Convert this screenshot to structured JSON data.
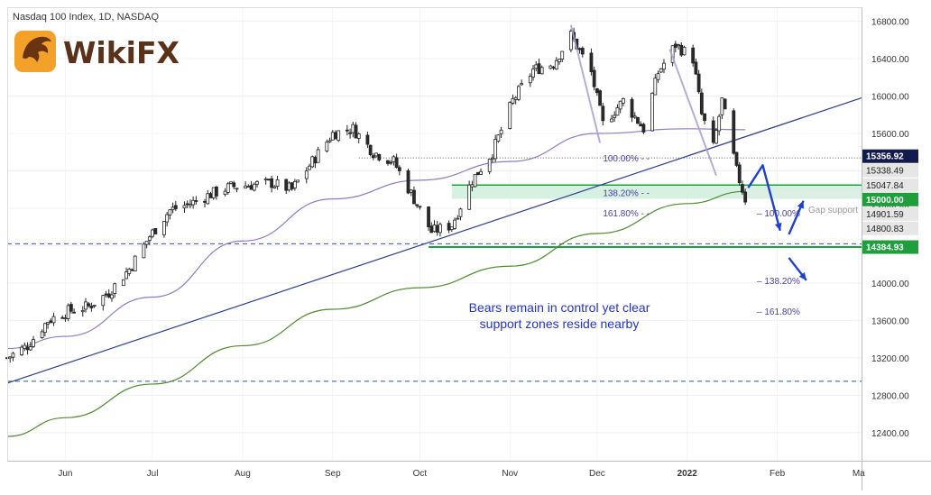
{
  "header": {
    "symbol_title": "Nasdaq 100 Index, 1D, NASDAQ"
  },
  "logo": {
    "text": "WikiFX"
  },
  "colors": {
    "up_candle": "#ffffff",
    "down_candle": "#2b2b2b",
    "ma_50": "#8e7cc3",
    "ma_200": "#4f8a2f",
    "trendline": "#2a3f8f",
    "support_green": "#1aa33b",
    "support_zone": "#cfeedd",
    "gap_zone": "#dcefe4",
    "arrow_blue": "#1f3fcf",
    "annotation_blue": "#2233cc",
    "fib_label": "#4a3f9f",
    "price_tag_dark": "#131b4d",
    "price_tag_light": "#e6e6e6",
    "price_tag_green": "#1f9e3c"
  },
  "chart_data": {
    "type": "line",
    "title": "Nasdaq 100 Index, 1D, NASDAQ",
    "xlabel": "",
    "ylabel": "",
    "ylim": [
      12100,
      16950
    ],
    "y_ticks": [
      12400,
      12800,
      13200,
      13600,
      14000,
      14400,
      14800,
      15200,
      15600,
      16000,
      16400,
      16800
    ],
    "y_tick_labels": [
      "12400.00",
      "12800.00",
      "13200.00",
      "13600.00",
      "14000.00",
      "14400.00",
      "14800.00",
      "15200.00",
      "15600.00",
      "16000.00",
      "16400.00",
      "16800.00"
    ],
    "x_labels": [
      "Jun",
      "Jul",
      "Aug",
      "Sep",
      "Oct",
      "Nov",
      "Dec",
      "2022",
      "Feb",
      "Ma"
    ],
    "x_label_dates": [
      "2021-06-01",
      "2021-07-01",
      "2021-08-01",
      "2021-09-01",
      "2021-10-01",
      "2021-11-01",
      "2021-12-01",
      "2022-01-01",
      "2022-02-01",
      "2022-03-01"
    ],
    "x_range": [
      "2021-05-12",
      "2022-03-02"
    ],
    "grid": true,
    "price_close_series": [
      {
        "date": "2021-05-12",
        "close": 13200
      },
      {
        "date": "2021-05-19",
        "close": 13330
      },
      {
        "date": "2021-05-26",
        "close": 13600
      },
      {
        "date": "2021-06-02",
        "close": 13700
      },
      {
        "date": "2021-06-09",
        "close": 13750
      },
      {
        "date": "2021-06-16",
        "close": 13900
      },
      {
        "date": "2021-06-23",
        "close": 14150
      },
      {
        "date": "2021-06-30",
        "close": 14500
      },
      {
        "date": "2021-07-07",
        "close": 14780
      },
      {
        "date": "2021-07-14",
        "close": 14850
      },
      {
        "date": "2021-07-21",
        "close": 14950
      },
      {
        "date": "2021-07-28",
        "close": 15030
      },
      {
        "date": "2021-08-04",
        "close": 15050
      },
      {
        "date": "2021-08-11",
        "close": 15070
      },
      {
        "date": "2021-08-18",
        "close": 15000
      },
      {
        "date": "2021-08-25",
        "close": 15300
      },
      {
        "date": "2021-09-01",
        "close": 15600
      },
      {
        "date": "2021-09-08",
        "close": 15650
      },
      {
        "date": "2021-09-15",
        "close": 15400
      },
      {
        "date": "2021-09-22",
        "close": 15300
      },
      {
        "date": "2021-09-29",
        "close": 14900
      },
      {
        "date": "2021-10-05",
        "close": 14550
      },
      {
        "date": "2021-10-12",
        "close": 14620
      },
      {
        "date": "2021-10-19",
        "close": 15100
      },
      {
        "date": "2021-10-26",
        "close": 15400
      },
      {
        "date": "2021-11-02",
        "close": 15950
      },
      {
        "date": "2021-11-09",
        "close": 16280
      },
      {
        "date": "2021-11-16",
        "close": 16350
      },
      {
        "date": "2021-11-22",
        "close": 16650
      },
      {
        "date": "2021-11-29",
        "close": 16250
      },
      {
        "date": "2021-12-03",
        "close": 15700
      },
      {
        "date": "2021-12-10",
        "close": 15950
      },
      {
        "date": "2021-12-17",
        "close": 15650
      },
      {
        "date": "2021-12-22",
        "close": 16250
      },
      {
        "date": "2021-12-28",
        "close": 16550
      },
      {
        "date": "2022-01-03",
        "close": 16400
      },
      {
        "date": "2022-01-06",
        "close": 15800
      },
      {
        "date": "2022-01-10",
        "close": 15450
      },
      {
        "date": "2022-01-13",
        "close": 15950
      },
      {
        "date": "2022-01-18",
        "close": 15200
      },
      {
        "date": "2022-01-21",
        "close": 14900
      }
    ],
    "series": [
      {
        "values": [
          {
            "date": "2021-05-12",
            "value": 13300
          },
          {
            "date": "2021-06-01",
            "value": 13430
          },
          {
            "date": "2021-07-01",
            "value": 13850
          },
          {
            "date": "2021-08-01",
            "value": 14450
          },
          {
            "date": "2021-09-01",
            "value": 14900
          },
          {
            "date": "2021-10-01",
            "value": 15100
          },
          {
            "date": "2021-11-01",
            "value": 15300
          },
          {
            "date": "2021-12-01",
            "value": 15600
          },
          {
            "date": "2022-01-01",
            "value": 15650
          },
          {
            "date": "2022-01-21",
            "value": 15640
          }
        ]
      },
      {
        "values": [
          {
            "date": "2021-05-12",
            "value": 12360
          },
          {
            "date": "2021-06-01",
            "value": 12560
          },
          {
            "date": "2021-07-01",
            "value": 12920
          },
          {
            "date": "2021-08-01",
            "value": 13330
          },
          {
            "date": "2021-09-01",
            "value": 13720
          },
          {
            "date": "2021-10-01",
            "value": 13950
          },
          {
            "date": "2021-11-01",
            "value": 14180
          },
          {
            "date": "2021-12-01",
            "value": 14530
          },
          {
            "date": "2022-01-01",
            "value": 14850
          },
          {
            "date": "2022-01-21",
            "value": 14980
          }
        ]
      }
    ],
    "trendline": [
      {
        "date": "2021-05-12",
        "value": 12930
      },
      {
        "date": "2022-03-02",
        "value": 15980
      }
    ],
    "swing_lines": [
      [
        {
          "date": "2021-11-22",
          "value": 16760
        },
        {
          "date": "2021-12-02",
          "value": 15500
        }
      ],
      [
        {
          "date": "2021-12-26",
          "value": 16500
        },
        {
          "date": "2022-01-11",
          "value": 15150
        }
      ]
    ],
    "horizontal_levels": [
      {
        "value": 15338.49,
        "style": "dotted",
        "from": "2021-09-10",
        "to": "2022-03-02"
      },
      {
        "value": 14384.93,
        "style": "solid",
        "from": "2021-10-04",
        "to": "2022-03-02"
      },
      {
        "value": 14420,
        "style": "dashed",
        "from": "2021-05-12",
        "to": "2022-03-02"
      },
      {
        "value": 12950,
        "style": "dashed",
        "from": "2021-05-12",
        "to": "2022-03-02"
      }
    ],
    "zones": [
      {
        "name": "support",
        "y_from": 14901.59,
        "y_to": 15047.84,
        "from": "2021-10-12",
        "to": "2022-03-02"
      },
      {
        "name": "gap",
        "y_from": 14901.59,
        "y_to": 15000.0,
        "from": "2022-01-20",
        "to": "2022-03-02"
      }
    ],
    "fib_left": [
      {
        "label": "100.00%",
        "value": 15338.49,
        "date": "2021-12-03"
      },
      {
        "label": "138.20%",
        "value": 14970,
        "date": "2021-12-03"
      },
      {
        "label": "161.80%",
        "value": 14750,
        "date": "2021-12-03"
      }
    ],
    "fib_right": [
      {
        "label": "100.00%",
        "value": 14750,
        "date": "2022-01-25"
      },
      {
        "label": "138.20%",
        "value": 14030,
        "date": "2022-01-25"
      },
      {
        "label": "161.80%",
        "value": 13700,
        "date": "2022-01-25"
      }
    ],
    "arrows": [
      [
        {
          "date": "2022-01-22",
          "value": 15020
        },
        {
          "date": "2022-01-27",
          "value": 15260
        },
        {
          "date": "2022-02-02",
          "value": 14560
        }
      ],
      [
        {
          "date": "2022-02-05",
          "value": 14520
        },
        {
          "date": "2022-02-10",
          "value": 14880
        }
      ],
      [
        {
          "date": "2022-02-05",
          "value": 14270
        },
        {
          "date": "2022-02-11",
          "value": 14030
        }
      ]
    ],
    "gap_label": "Gap support",
    "annotation": [
      "Bears remain in control yet clear",
      "support zones reside nearby"
    ],
    "price_tags": [
      {
        "label": "15356.92",
        "value": 15356.92,
        "style": "dark"
      },
      {
        "label": "15338.49",
        "value": 15338.49,
        "style": "light"
      },
      {
        "label": "15047.84",
        "value": 15047.84,
        "style": "light"
      },
      {
        "label": "15000.00",
        "value": 15000.0,
        "style": "green"
      },
      {
        "label": "14901.59",
        "value": 14901.59,
        "style": "light"
      },
      {
        "label": "14800.83",
        "value": 14800.83,
        "style": "light"
      },
      {
        "label": "14384.93",
        "value": 14384.93,
        "style": "green"
      }
    ]
  }
}
